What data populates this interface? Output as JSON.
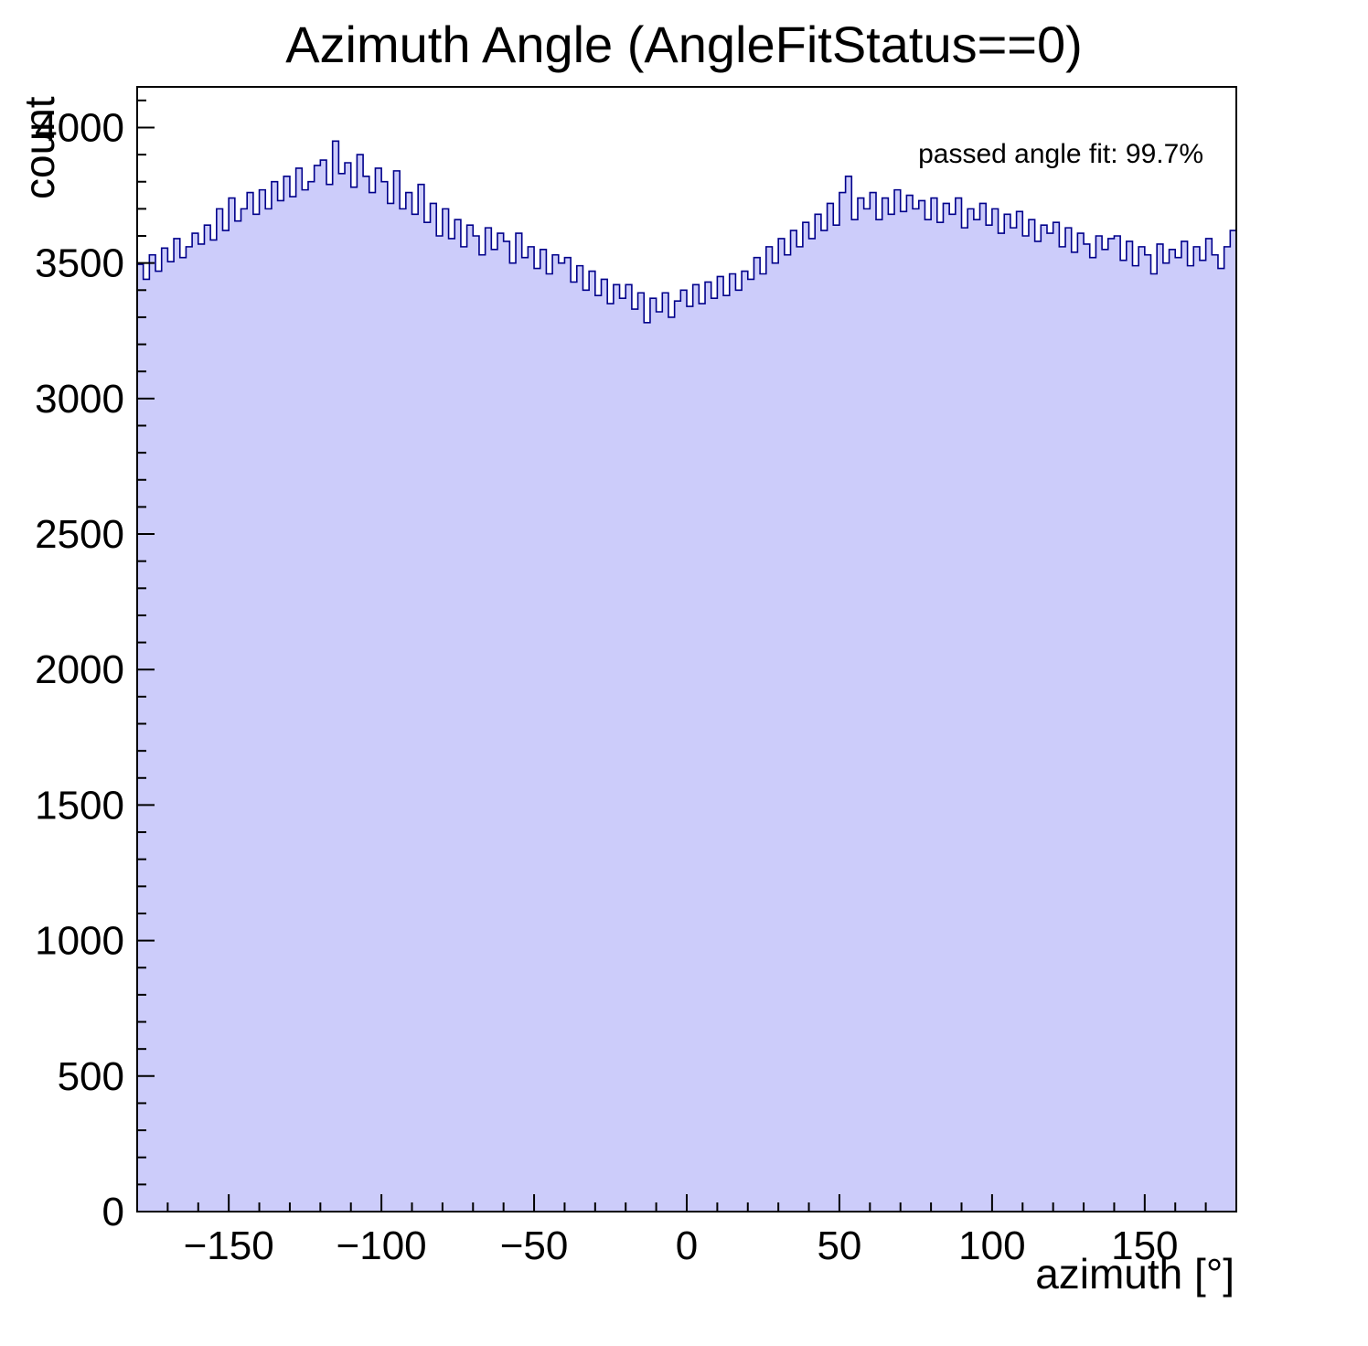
{
  "chart_data": {
    "type": "bar",
    "subtype": "histogram-step-filled",
    "title": "Azimuth Angle (AngleFitStatus==0)",
    "xlabel": "azimuth [°]",
    "ylabel": "count",
    "annotation": "passed angle fit: 99.7%",
    "xlim": [
      -180,
      180
    ],
    "ylim": [
      0,
      4150
    ],
    "x_major_ticks": [
      -150,
      -100,
      -50,
      0,
      50,
      100,
      150
    ],
    "x_tick_labels": [
      "−150",
      "−100",
      "−50",
      "0",
      "50",
      "100",
      "150"
    ],
    "x_minor_step": 10,
    "y_major_ticks": [
      0,
      500,
      1000,
      1500,
      2000,
      2500,
      3000,
      3500,
      4000
    ],
    "y_tick_labels": [
      "0",
      "500",
      "1000",
      "1500",
      "2000",
      "2500",
      "3000",
      "3500",
      "4000"
    ],
    "y_minor_step": 100,
    "bin_start": -180,
    "bin_width": 2,
    "values": [
      3495,
      3440,
      3530,
      3470,
      3555,
      3505,
      3590,
      3520,
      3560,
      3610,
      3570,
      3640,
      3585,
      3700,
      3620,
      3740,
      3655,
      3700,
      3760,
      3680,
      3770,
      3700,
      3800,
      3730,
      3820,
      3745,
      3850,
      3770,
      3800,
      3860,
      3880,
      3790,
      3950,
      3830,
      3870,
      3780,
      3900,
      3820,
      3760,
      3850,
      3800,
      3720,
      3840,
      3700,
      3760,
      3680,
      3790,
      3650,
      3720,
      3600,
      3700,
      3590,
      3660,
      3560,
      3640,
      3600,
      3530,
      3630,
      3550,
      3610,
      3580,
      3500,
      3610,
      3520,
      3560,
      3480,
      3550,
      3460,
      3530,
      3500,
      3520,
      3430,
      3490,
      3400,
      3470,
      3380,
      3440,
      3350,
      3420,
      3370,
      3420,
      3330,
      3390,
      3280,
      3370,
      3320,
      3390,
      3300,
      3360,
      3400,
      3340,
      3420,
      3350,
      3430,
      3370,
      3450,
      3380,
      3460,
      3400,
      3470,
      3440,
      3520,
      3460,
      3560,
      3500,
      3590,
      3530,
      3620,
      3560,
      3650,
      3590,
      3680,
      3620,
      3720,
      3640,
      3760,
      3820,
      3660,
      3740,
      3700,
      3760,
      3660,
      3740,
      3680,
      3770,
      3690,
      3750,
      3700,
      3730,
      3660,
      3740,
      3650,
      3720,
      3680,
      3740,
      3630,
      3700,
      3660,
      3720,
      3640,
      3700,
      3610,
      3680,
      3630,
      3690,
      3600,
      3660,
      3580,
      3640,
      3610,
      3650,
      3560,
      3630,
      3540,
      3610,
      3570,
      3520,
      3600,
      3550,
      3590,
      3600,
      3510,
      3580,
      3490,
      3560,
      3530,
      3460,
      3570,
      3500,
      3550,
      3520,
      3580,
      3490,
      3560,
      3510,
      3590,
      3530,
      3480,
      3560,
      3620
    ],
    "fill_color": "#ccccfa",
    "line_color": "#00008b",
    "frame_color": "#000000"
  }
}
